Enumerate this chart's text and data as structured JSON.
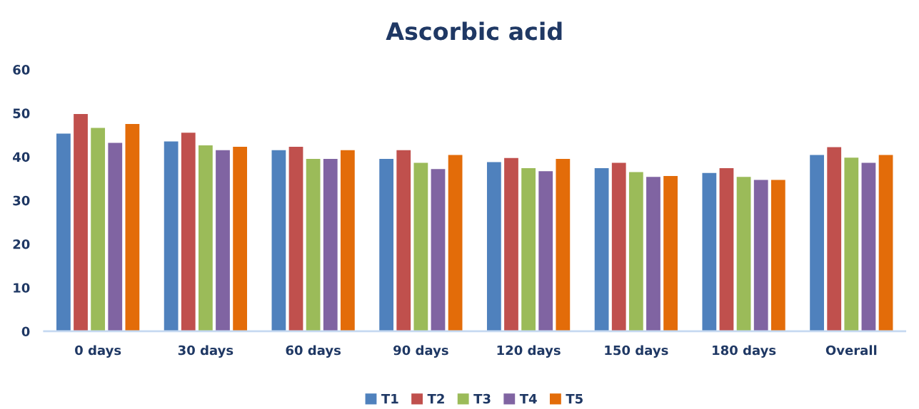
{
  "chart_data": {
    "type": "bar",
    "title": "Ascorbic acid",
    "categories": [
      "0 days",
      "30 days",
      "60 days",
      "90 days",
      "120 days",
      "150 days",
      "180 days",
      "Overall"
    ],
    "series": [
      {
        "name": "T1",
        "color": "#4f81bd",
        "values": [
          45.3,
          43.5,
          41.5,
          39.5,
          38.8,
          37.4,
          36.3,
          40.4
        ]
      },
      {
        "name": "T2",
        "color": "#c0504d",
        "values": [
          49.8,
          45.5,
          42.3,
          41.5,
          39.7,
          38.6,
          37.4,
          42.2
        ]
      },
      {
        "name": "T3",
        "color": "#9bbb59",
        "values": [
          46.6,
          42.6,
          39.5,
          38.6,
          37.4,
          36.5,
          35.4,
          39.8
        ]
      },
      {
        "name": "T4",
        "color": "#8064a2",
        "values": [
          43.2,
          41.5,
          39.5,
          37.2,
          36.7,
          35.4,
          34.7,
          38.6
        ]
      },
      {
        "name": "T5",
        "color": "#e36c09",
        "values": [
          47.5,
          42.3,
          41.5,
          40.4,
          39.5,
          35.6,
          34.7,
          40.4
        ]
      }
    ],
    "ylim": [
      0,
      60
    ],
    "yticks": [
      0,
      10,
      20,
      30,
      40,
      50,
      60
    ],
    "grid": false,
    "legend": "bottom"
  }
}
